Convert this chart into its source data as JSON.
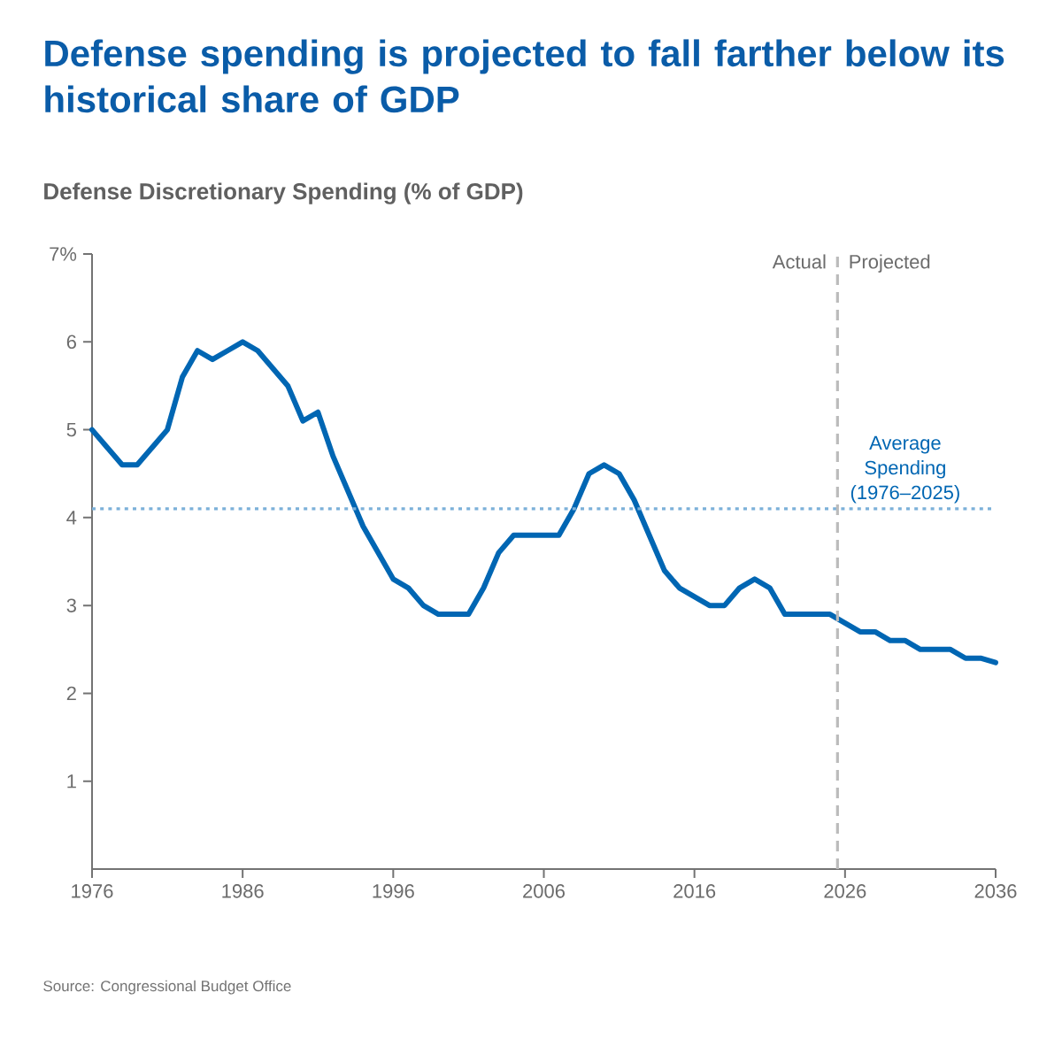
{
  "chart_data": {
    "type": "line",
    "title": "Defense spending is projected to fall farther below its historical share of GDP",
    "subtitle": "Defense Discretionary Spending (% of GDP)",
    "x": [
      1976,
      1977,
      1978,
      1979,
      1980,
      1981,
      1982,
      1983,
      1984,
      1985,
      1986,
      1987,
      1988,
      1989,
      1990,
      1991,
      1992,
      1993,
      1994,
      1995,
      1996,
      1997,
      1998,
      1999,
      2000,
      2001,
      2002,
      2003,
      2004,
      2005,
      2006,
      2007,
      2008,
      2009,
      2010,
      2011,
      2012,
      2013,
      2014,
      2015,
      2016,
      2017,
      2018,
      2019,
      2020,
      2021,
      2022,
      2023,
      2024,
      2025,
      2026,
      2027,
      2028,
      2029,
      2030,
      2031,
      2032,
      2033,
      2034,
      2035,
      2036
    ],
    "series": [
      {
        "color": "#0066b3",
        "values": [
          5.0,
          4.8,
          4.6,
          4.6,
          4.8,
          5.0,
          5.6,
          5.9,
          5.8,
          5.9,
          6.0,
          5.9,
          5.7,
          5.5,
          5.1,
          5.2,
          4.7,
          4.3,
          3.9,
          3.6,
          3.3,
          3.2,
          3.0,
          2.9,
          2.9,
          2.9,
          3.2,
          3.6,
          3.8,
          3.8,
          3.8,
          3.8,
          4.1,
          4.5,
          4.6,
          4.5,
          4.2,
          3.8,
          3.4,
          3.2,
          3.1,
          3.0,
          3.0,
          3.2,
          3.3,
          3.2,
          2.9,
          2.9,
          2.9,
          2.9,
          2.8,
          2.7,
          2.7,
          2.6,
          2.6,
          2.5,
          2.5,
          2.5,
          2.4,
          2.4,
          2.35
        ]
      }
    ],
    "xlim": [
      1976,
      2036
    ],
    "xticks": [
      1976,
      1986,
      1996,
      2006,
      2016,
      2026,
      2036
    ],
    "ylim": [
      0,
      7
    ],
    "yticks": [
      1,
      2,
      3,
      4,
      5,
      6,
      {
        "value": 7,
        "label": "7%"
      }
    ],
    "grid": false,
    "line_style": "solid",
    "ref_lines": [
      {
        "axis": "y",
        "value": 4.1,
        "label": "Average Spending (1976–2025)",
        "color": "#7bb0d9",
        "line_style": "dotted"
      },
      {
        "axis": "x",
        "value": 2025.5,
        "color": "#bbbbbb",
        "line_style": "dashed"
      }
    ],
    "annotations": [
      "Actual",
      "Projected",
      "Source: Congressional Budget Office"
    ]
  }
}
